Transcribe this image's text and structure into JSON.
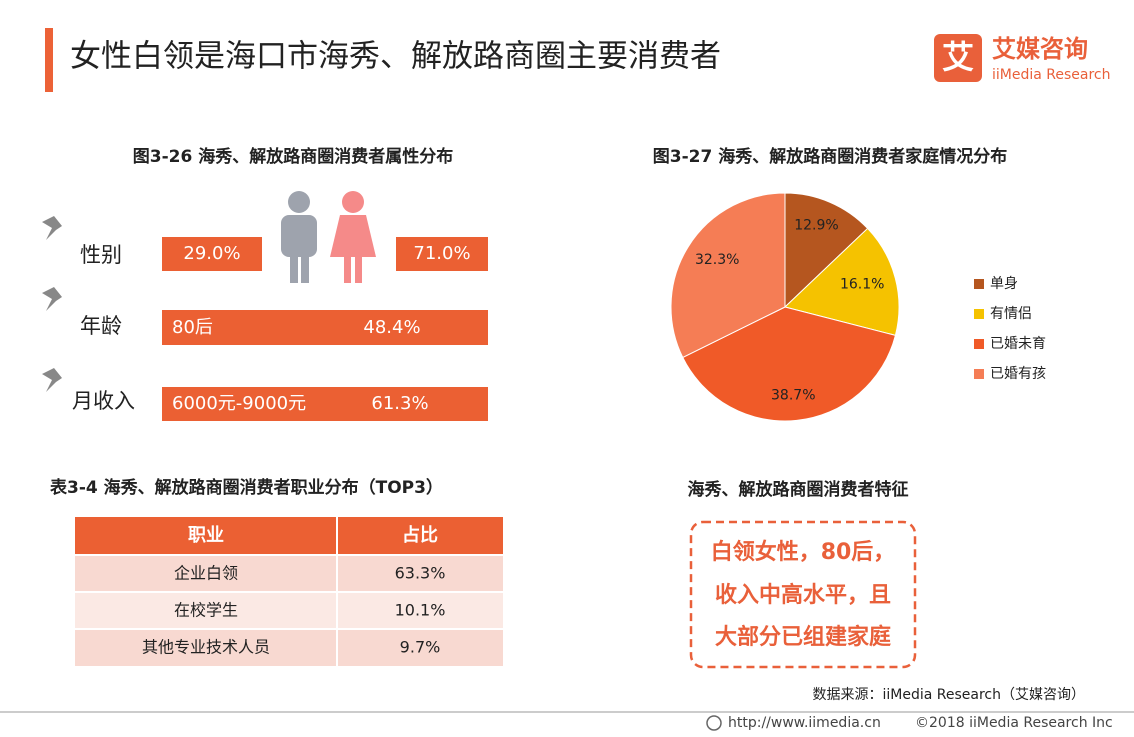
{
  "header": {
    "title": "女性白领是海口市海秀、解放路商圈主要消费者",
    "logo_icon": "艾",
    "logo_cn": "艾媒咨询",
    "logo_en": "iiMedia Research"
  },
  "attributes": {
    "title": "图3-26 海秀、解放路商圈消费者属性分布",
    "gender": {
      "label": "性别",
      "male": "29.0%",
      "female": "71.0%"
    },
    "age": {
      "label": "年龄",
      "text": "80后",
      "value": "48.4%"
    },
    "income": {
      "label": "月收入",
      "text": "6000元-9000元",
      "value": "61.3%"
    }
  },
  "chart_data": {
    "type": "pie",
    "title": "图3-27 海秀、解放路商圈消费者家庭情况分布",
    "categories": [
      "单身",
      "有情侣",
      "已婚未育",
      "已婚有孩"
    ],
    "values": [
      12.9,
      16.1,
      38.7,
      32.3
    ],
    "value_labels": [
      "12.9%",
      "16.1%",
      "38.7%",
      "32.3%"
    ],
    "colors": [
      "#b5561f",
      "#f5c200",
      "#f05a28",
      "#f57d55"
    ],
    "legend": "right"
  },
  "table": {
    "title": "表3-4 海秀、解放路商圈消费者职业分布（TOP3）",
    "header": [
      "职业",
      "占比"
    ],
    "rows": [
      [
        "企业白领",
        "63.3%"
      ],
      [
        "在校学生",
        "10.1%"
      ],
      [
        "其他专业技术人员",
        "9.7%"
      ]
    ]
  },
  "features": {
    "title": "海秀、解放路商圈消费者特征",
    "lines": [
      "白领女性，80后，",
      "收入中高水平，且",
      "大部分已组建家庭"
    ]
  },
  "source": "数据来源：iiMedia Research（艾媒咨询）",
  "footer": {
    "url": "http://www.iimedia.cn",
    "copyright": "©2018 iiMedia Research Inc"
  }
}
